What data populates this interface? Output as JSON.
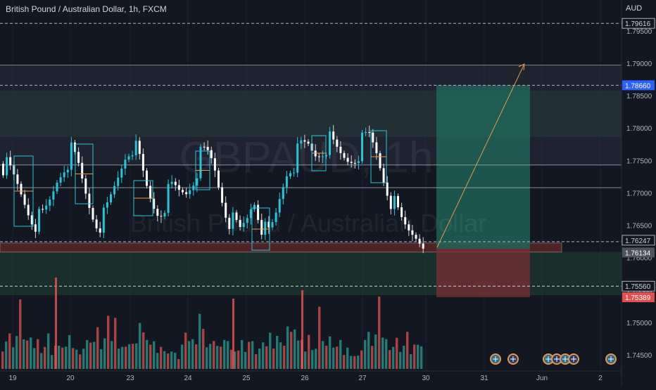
{
  "header": {
    "symbol_title": "British Pound / Australian Dollar, 1h, FXCM",
    "currency": "AUD"
  },
  "watermark": {
    "ticker": "GBPAUD, 1h",
    "name": "British Pound / Australian Dollar"
  },
  "colors": {
    "background": "#131722",
    "up": "#26a69a",
    "down": "#ef5350",
    "accent_cyan": "#26c6da",
    "zone_green": "#1f4d3a",
    "zone_red": "#5a2426",
    "target_line": "#e8974a"
  },
  "chart_data": {
    "type": "candlestick",
    "x_ticks": [
      "19",
      "20",
      "23",
      "24",
      "25",
      "26",
      "27",
      "30",
      "31",
      "Jun",
      "2"
    ],
    "y_ticks": [
      "1.79500",
      "1.79000",
      "1.78500",
      "1.78000",
      "1.77500",
      "1.77000",
      "1.76500",
      "1.76000",
      "1.75500",
      "1.75000",
      "1.74500"
    ],
    "ylim": [
      1.7425,
      1.7985
    ],
    "levels": [
      {
        "label": "1.79616",
        "price": 1.79616,
        "style": "dashed",
        "badge": "dark"
      },
      {
        "label": "1.78660",
        "price": 1.7866,
        "style": "dashed",
        "badge": "blue"
      },
      {
        "label": "1.76247",
        "price": 1.76247,
        "style": "dashed",
        "badge": "dark"
      },
      {
        "label": "1.76134",
        "price": 1.76134,
        "style": "none",
        "badge": "gray"
      },
      {
        "label": "1.75560",
        "price": 1.7556,
        "style": "dashed",
        "badge": "dark"
      },
      {
        "label": "1.75389",
        "price": 1.75389,
        "style": "none",
        "badge": "red"
      }
    ],
    "solid_lines": [
      1.7897,
      1.7743,
      1.7708
    ],
    "zones": {
      "upper_green": [
        1.7786,
        1.7858
      ],
      "lower_green": [
        1.7542,
        1.7609
      ],
      "red_band": [
        1.76085,
        1.76225
      ],
      "take_profit": [
        1.76134,
        1.7866
      ],
      "stop_loss": [
        1.75389,
        1.76134
      ]
    },
    "candles_close_sample": [
      1.7745,
      1.773,
      1.7712,
      1.769,
      1.7668,
      1.7655,
      1.7662,
      1.7688,
      1.7722,
      1.7745,
      1.7761,
      1.7742,
      1.7705,
      1.7672,
      1.7655,
      1.766,
      1.7692,
      1.7725,
      1.776,
      1.7778,
      1.7752,
      1.7712,
      1.7683,
      1.7671,
      1.769,
      1.7705,
      1.77,
      1.7702,
      1.7722,
      1.7752,
      1.776,
      1.7745,
      1.7705,
      1.767,
      1.765,
      1.7638,
      1.766,
      1.7694,
      1.7658,
      1.7628,
      1.7652,
      1.77,
      1.774,
      1.775,
      1.7768,
      1.7772,
      1.776,
      1.7768,
      1.778,
      1.7765,
      1.7755,
      1.7752,
      1.776,
      1.7775,
      1.7785,
      1.7765,
      1.773,
      1.77,
      1.767,
      1.765,
      1.7641,
      1.7638,
      1.7632
    ],
    "volume_sample": [
      60,
      75,
      80,
      70,
      85,
      150,
      90,
      70,
      65,
      60,
      70,
      55,
      60,
      80,
      45,
      60,
      50,
      65,
      55,
      70,
      60,
      45,
      50,
      55,
      65,
      85,
      70,
      90,
      60,
      75,
      110,
      80,
      120,
      70,
      60,
      50,
      80,
      65,
      55,
      140,
      90,
      60,
      70,
      65,
      55,
      60,
      40,
      50,
      45,
      35,
      30
    ]
  },
  "time_labels": {
    "19": "19",
    "20": "20",
    "23": "23",
    "24": "24",
    "25": "25",
    "26": "26",
    "27": "27",
    "30": "30",
    "31": "31",
    "jun": "Jun",
    "2": "2"
  },
  "event_icons": [
    "uk-flag-icon",
    "australia-flag-icon"
  ]
}
